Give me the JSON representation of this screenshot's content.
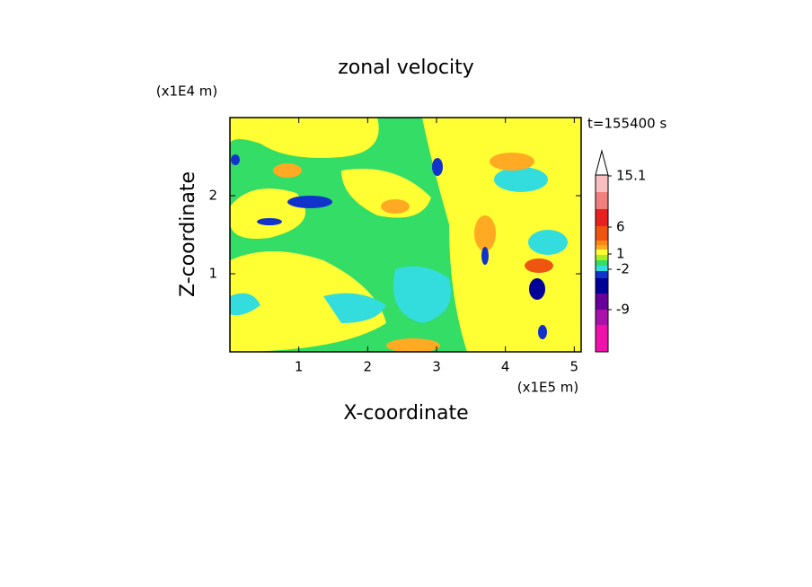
{
  "chart_data": {
    "type": "contour",
    "title": "zonal velocity",
    "xlabel": "X-coordinate",
    "ylabel": "Z-coordinate",
    "xunit": "(x1E5 m)",
    "yunit": "(x1E4 m)",
    "time_label": "t=155400 s",
    "xlim": [
      0,
      5.1
    ],
    "xticks": [
      1,
      2,
      3,
      4,
      5
    ],
    "ylim": [
      0,
      3
    ],
    "yticks": [
      1,
      2
    ],
    "colorbar": {
      "ticks": [
        15.1,
        6,
        1,
        -2,
        -9
      ]
    }
  }
}
